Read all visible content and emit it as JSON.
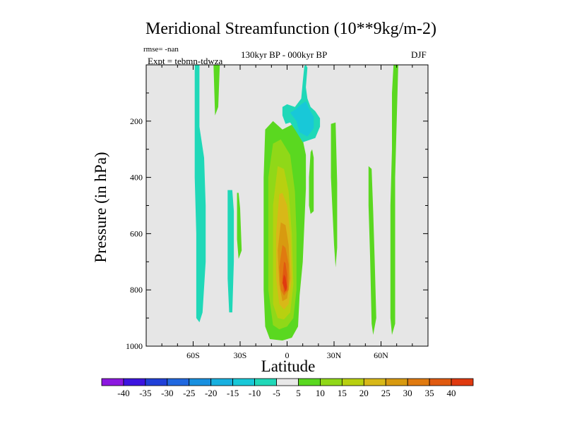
{
  "chart_data": {
    "type": "contour",
    "title": "Meridional Streamfunction (10**9kg/m-2)",
    "subtitle_left_top": "rmse= -nan",
    "subtitle_left": "Expt = tebmn-tdwza",
    "subtitle_center": "130kyr BP - 000kyr BP",
    "subtitle_right": "DJF",
    "xlabel": "Latitude",
    "ylabel": "Pressure (in hPa)",
    "xlim": [
      -90,
      90
    ],
    "ylim": [
      1000,
      0
    ],
    "x_ticks": [
      {
        "value": -60,
        "label": "60S"
      },
      {
        "value": -30,
        "label": "30S"
      },
      {
        "value": 0,
        "label": "0"
      },
      {
        "value": 30,
        "label": "30N"
      },
      {
        "value": 60,
        "label": "60N"
      }
    ],
    "y_ticks": [
      {
        "value": 200,
        "label": "200"
      },
      {
        "value": 400,
        "label": "400"
      },
      {
        "value": 600,
        "label": "600"
      },
      {
        "value": 800,
        "label": "800"
      },
      {
        "value": 1000,
        "label": "1000"
      }
    ],
    "missing_color": "#e6e6e6",
    "colorbar": {
      "labels": [
        "-40",
        "-35",
        "-30",
        "-25",
        "-20",
        "-15",
        "-10",
        "-5",
        "5",
        "10",
        "15",
        "20",
        "25",
        "30",
        "35",
        "40"
      ],
      "colors": [
        "#8c18e0",
        "#3c14e0",
        "#2040d8",
        "#2068e0",
        "#1890e0",
        "#18b0e0",
        "#18c8d8",
        "#20d8b8",
        "#e8e8e8",
        "#5ad820",
        "#90d818",
        "#b8d010",
        "#d8b818",
        "#d89a10",
        "#e07a10",
        "#e05a10",
        "#e03a10"
      ]
    },
    "regions": [
      {
        "name": "sh-high-lat-negative-band",
        "level_index": 7,
        "points": [
          [
            -58,
            0
          ],
          [
            -59,
            0
          ],
          [
            -59,
            180
          ],
          [
            -59,
            400
          ],
          [
            -58,
            600
          ],
          [
            -58,
            790
          ],
          [
            -58,
            900
          ],
          [
            -56,
            915
          ],
          [
            -54,
            880
          ],
          [
            -52,
            700
          ],
          [
            -52,
            500
          ],
          [
            -53,
            330
          ],
          [
            -56,
            220
          ],
          [
            -56,
            80
          ],
          [
            -56,
            0
          ]
        ]
      },
      {
        "name": "sh-mid-lat-negative-band",
        "level_index": 7,
        "points": [
          [
            -38,
            445
          ],
          [
            -38,
            600
          ],
          [
            -38,
            760
          ],
          [
            -37,
            880
          ],
          [
            -35,
            880
          ],
          [
            -34,
            700
          ],
          [
            -34,
            520
          ],
          [
            -35,
            445
          ]
        ]
      },
      {
        "name": "sh-positive-streak-upper",
        "level_index": 9,
        "points": [
          [
            -47,
            0
          ],
          [
            -46,
            180
          ],
          [
            -44,
            150
          ],
          [
            -43,
            0
          ]
        ]
      },
      {
        "name": "sh-positive-streak-mid",
        "level_index": 9,
        "points": [
          [
            -32,
            455
          ],
          [
            -32,
            620
          ],
          [
            -31,
            690
          ],
          [
            -29,
            660
          ],
          [
            -30,
            510
          ],
          [
            -31,
            455
          ]
        ]
      },
      {
        "name": "cell-outer-5",
        "level_index": 9,
        "points": [
          [
            -14,
            230
          ],
          [
            -15,
            400
          ],
          [
            -15,
            600
          ],
          [
            -15,
            800
          ],
          [
            -14,
            930
          ],
          [
            -11,
            975
          ],
          [
            -3,
            980
          ],
          [
            3,
            970
          ],
          [
            7,
            930
          ],
          [
            8,
            820
          ],
          [
            10,
            700
          ],
          [
            11,
            570
          ],
          [
            12,
            440
          ],
          [
            12,
            320
          ],
          [
            9,
            240
          ],
          [
            4,
            210
          ],
          [
            -3,
            230
          ],
          [
            -9,
            200
          ]
        ]
      },
      {
        "name": "cell-level-10",
        "level_index": 10,
        "points": [
          [
            -9,
            280
          ],
          [
            -12,
            400
          ],
          [
            -12,
            600
          ],
          [
            -12,
            800
          ],
          [
            -9,
            925
          ],
          [
            -5,
            940
          ],
          [
            0,
            930
          ],
          [
            4,
            900
          ],
          [
            6,
            800
          ],
          [
            6,
            600
          ],
          [
            5,
            450
          ],
          [
            2,
            320
          ],
          [
            -4,
            265
          ]
        ]
      },
      {
        "name": "cell-level-15",
        "level_index": 11,
        "points": [
          [
            -6,
            360
          ],
          [
            -9,
            500
          ],
          [
            -9,
            700
          ],
          [
            -9,
            850
          ],
          [
            -6,
            900
          ],
          [
            -2,
            905
          ],
          [
            2,
            880
          ],
          [
            4,
            780
          ],
          [
            3,
            600
          ],
          [
            1,
            450
          ],
          [
            -2,
            370
          ]
        ]
      },
      {
        "name": "cell-level-20",
        "level_index": 12,
        "points": [
          [
            -5,
            460
          ],
          [
            -7,
            600
          ],
          [
            -7,
            760
          ],
          [
            -5,
            850
          ],
          [
            -2,
            870
          ],
          [
            1,
            850
          ],
          [
            3,
            760
          ],
          [
            2,
            600
          ],
          [
            0,
            500
          ],
          [
            -3,
            455
          ]
        ]
      },
      {
        "name": "cell-level-25",
        "level_index": 13,
        "points": [
          [
            -4,
            560
          ],
          [
            -6,
            660
          ],
          [
            -5,
            780
          ],
          [
            -3,
            840
          ],
          [
            0,
            830
          ],
          [
            2,
            760
          ],
          [
            1,
            640
          ],
          [
            -1,
            570
          ]
        ]
      },
      {
        "name": "cell-level-30",
        "level_index": 14,
        "points": [
          [
            -3,
            640
          ],
          [
            -5,
            720
          ],
          [
            -4,
            800
          ],
          [
            -2,
            820
          ],
          [
            1,
            800
          ],
          [
            1,
            710
          ],
          [
            -1,
            650
          ]
        ]
      },
      {
        "name": "cell-level-35",
        "level_index": 15,
        "points": [
          [
            -2,
            700
          ],
          [
            -3,
            760
          ],
          [
            -2,
            810
          ],
          [
            0,
            800
          ],
          [
            0,
            745
          ],
          [
            -1,
            705
          ]
        ]
      },
      {
        "name": "cell-level-40",
        "level_index": 16,
        "points": [
          [
            -2,
            745
          ],
          [
            -3,
            775
          ],
          [
            -1,
            805
          ],
          [
            0,
            790
          ],
          [
            -1,
            755
          ]
        ]
      },
      {
        "name": "eq-upper-neg-5",
        "level_index": 7,
        "points": [
          [
            -3,
            150
          ],
          [
            -3,
            180
          ],
          [
            -1,
            210
          ],
          [
            2,
            205
          ],
          [
            5,
            230
          ],
          [
            10,
            275
          ],
          [
            18,
            260
          ],
          [
            21,
            220
          ],
          [
            21,
            190
          ],
          [
            18,
            165
          ],
          [
            15,
            150
          ],
          [
            13,
            120
          ],
          [
            12,
            80
          ],
          [
            13,
            10
          ],
          [
            12,
            0
          ],
          [
            11,
            5
          ],
          [
            10,
            60
          ],
          [
            9,
            120
          ],
          [
            5,
            150
          ],
          [
            0,
            140
          ]
        ]
      },
      {
        "name": "eq-upper-neg-10",
        "level_index": 6,
        "points": [
          [
            2,
            170
          ],
          [
            6,
            200
          ],
          [
            8,
            240
          ],
          [
            13,
            255
          ],
          [
            17,
            225
          ],
          [
            17,
            185
          ],
          [
            14,
            155
          ],
          [
            12,
            130
          ],
          [
            9,
            140
          ],
          [
            5,
            160
          ]
        ]
      },
      {
        "name": "nh-subtrop-pos-upper",
        "level_index": 9,
        "points": [
          [
            15,
            310
          ],
          [
            14,
            400
          ],
          [
            14,
            500
          ],
          [
            15,
            530
          ],
          [
            17,
            520
          ],
          [
            17,
            420
          ],
          [
            17,
            330
          ],
          [
            16,
            300
          ]
        ]
      },
      {
        "name": "nh-positive-streak",
        "level_index": 9,
        "points": [
          [
            28,
            210
          ],
          [
            28,
            400
          ],
          [
            30,
            640
          ],
          [
            31,
            720
          ],
          [
            32,
            650
          ],
          [
            32,
            420
          ],
          [
            31,
            205
          ]
        ]
      },
      {
        "name": "nh-mid-lat-positive",
        "level_index": 9,
        "points": [
          [
            52,
            360
          ],
          [
            52,
            500
          ],
          [
            53,
            680
          ],
          [
            54,
            920
          ],
          [
            55,
            960
          ],
          [
            57,
            900
          ],
          [
            56,
            700
          ],
          [
            55,
            520
          ],
          [
            54,
            370
          ]
        ]
      },
      {
        "name": "nh-high-lat-positive",
        "level_index": 9,
        "points": [
          [
            68,
            0
          ],
          [
            67,
            100
          ],
          [
            67,
            300
          ],
          [
            66,
            500
          ],
          [
            66,
            700
          ],
          [
            66,
            900
          ],
          [
            67,
            960
          ],
          [
            69,
            920
          ],
          [
            69,
            700
          ],
          [
            69,
            400
          ],
          [
            70,
            200
          ],
          [
            71,
            0
          ]
        ]
      }
    ]
  }
}
